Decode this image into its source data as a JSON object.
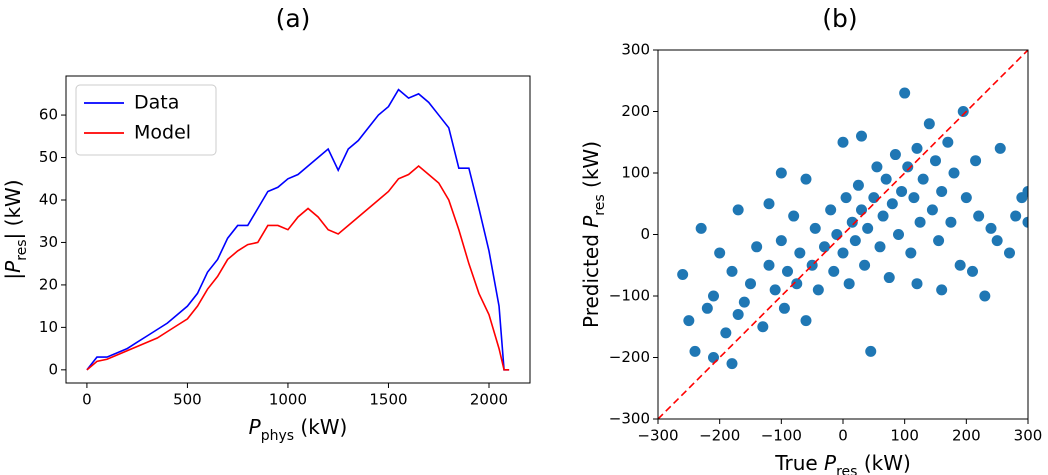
{
  "chart_data": [
    {
      "type": "line",
      "title": "(a)",
      "xlabel": [
        {
          "text": "P",
          "style": "italic"
        },
        {
          "text": "phys",
          "style": "sub"
        },
        {
          "text": " (kW)"
        }
      ],
      "ylabel": [
        {
          "text": "|"
        },
        {
          "text": "P",
          "style": "italic"
        },
        {
          "text": "res",
          "style": "sub"
        },
        {
          "text": "| (kW)"
        }
      ],
      "x": [
        0,
        50,
        100,
        150,
        200,
        250,
        300,
        350,
        400,
        450,
        500,
        550,
        600,
        650,
        700,
        750,
        800,
        850,
        900,
        950,
        1000,
        1050,
        1100,
        1150,
        1200,
        1250,
        1300,
        1350,
        1400,
        1450,
        1500,
        1550,
        1600,
        1650,
        1700,
        1750,
        1800,
        1850,
        1900,
        1950,
        2000,
        2050,
        2075,
        2100
      ],
      "series": [
        {
          "name": "Data",
          "color": "#0000ff",
          "values": [
            0,
            3,
            3,
            4,
            5,
            6.5,
            8,
            9.5,
            11,
            13,
            15,
            18,
            23,
            26,
            31,
            34,
            34,
            38,
            42,
            43,
            45,
            46,
            48,
            50,
            52,
            47,
            52,
            54,
            57,
            60,
            62,
            66,
            64,
            65,
            63,
            60,
            57,
            47.5,
            47.5,
            38,
            28,
            15,
            0,
            0
          ]
        },
        {
          "name": "Model",
          "color": "#ff0000",
          "values": [
            0,
            2,
            2.5,
            3.5,
            4.5,
            5.5,
            6.5,
            7.5,
            9,
            10.5,
            12,
            15,
            19,
            22,
            26,
            28,
            29.5,
            30,
            34,
            34,
            33,
            36,
            38,
            36,
            33,
            32,
            34,
            36,
            38,
            40,
            42,
            45,
            46,
            48,
            46,
            44,
            40,
            33,
            25,
            18,
            13,
            5,
            0,
            0
          ]
        }
      ],
      "xlim": [
        -104,
        2204
      ],
      "ylim": [
        -3.1,
        69.2
      ],
      "xticks": [
        0,
        500,
        1000,
        1500,
        2000
      ],
      "yticks": [
        0,
        10,
        20,
        30,
        40,
        50,
        60
      ],
      "legend": "upper left",
      "grid": false
    },
    {
      "type": "scatter",
      "title": "(b)",
      "xlabel": [
        {
          "text": "True "
        },
        {
          "text": "P",
          "style": "italic"
        },
        {
          "text": "res",
          "style": "sub"
        },
        {
          "text": " (kW)"
        }
      ],
      "ylabel": [
        {
          "text": "Predicted "
        },
        {
          "text": "P",
          "style": "italic"
        },
        {
          "text": "res",
          "style": "sub"
        },
        {
          "text": " (kW)"
        }
      ],
      "color": "#1f77b4",
      "x": [
        -260,
        -250,
        -240,
        -220,
        -210,
        -200,
        -190,
        -180,
        -170,
        -160,
        -150,
        -140,
        -130,
        -120,
        -110,
        -100,
        -95,
        -90,
        -80,
        -75,
        -70,
        -60,
        -50,
        -45,
        -40,
        -30,
        -20,
        -15,
        -10,
        0,
        5,
        10,
        15,
        20,
        25,
        30,
        35,
        40,
        45,
        50,
        55,
        60,
        65,
        70,
        75,
        80,
        85,
        90,
        95,
        100,
        105,
        110,
        115,
        120,
        125,
        130,
        140,
        145,
        150,
        155,
        160,
        170,
        175,
        180,
        190,
        195,
        200,
        210,
        215,
        220,
        230,
        240,
        250,
        255,
        270,
        280,
        290,
        300,
        300,
        -180,
        -210,
        -230,
        -170,
        -120,
        -100,
        -60,
        0,
        30,
        160,
        120
      ],
      "values": [
        -65,
        -140,
        -190,
        -120,
        -100,
        -30,
        -160,
        -60,
        -130,
        -110,
        -80,
        -20,
        -150,
        -50,
        -90,
        -10,
        -120,
        -60,
        30,
        -80,
        -30,
        -140,
        -50,
        10,
        -90,
        -20,
        40,
        -60,
        0,
        -30,
        60,
        -80,
        20,
        -10,
        80,
        40,
        -50,
        10,
        -190,
        60,
        110,
        -20,
        30,
        90,
        -70,
        50,
        130,
        0,
        70,
        230,
        110,
        -30,
        60,
        140,
        20,
        90,
        180,
        40,
        120,
        -10,
        70,
        150,
        20,
        100,
        -50,
        200,
        60,
        -60,
        120,
        30,
        -100,
        10,
        -10,
        140,
        -30,
        30,
        60,
        70,
        20,
        -210,
        -200,
        10,
        40,
        50,
        100,
        90,
        150,
        160,
        -90,
        -80
      ],
      "reference_line": {
        "x": [
          -300,
          300
        ],
        "y": [
          -300,
          300
        ],
        "color": "#ff0000"
      },
      "xlim": [
        -300,
        300
      ],
      "ylim": [
        -300,
        300
      ],
      "xticks": [
        {
          "value": -300,
          "label": "−300"
        },
        {
          "value": -200,
          "label": "−200"
        },
        {
          "value": -100,
          "label": "−100"
        },
        0,
        100,
        200,
        300
      ],
      "yticks": [
        {
          "value": -300,
          "label": "−300"
        },
        {
          "value": -200,
          "label": "−200"
        },
        {
          "value": -100,
          "label": "−100"
        },
        0,
        100,
        200,
        300
      ],
      "grid": false
    }
  ]
}
